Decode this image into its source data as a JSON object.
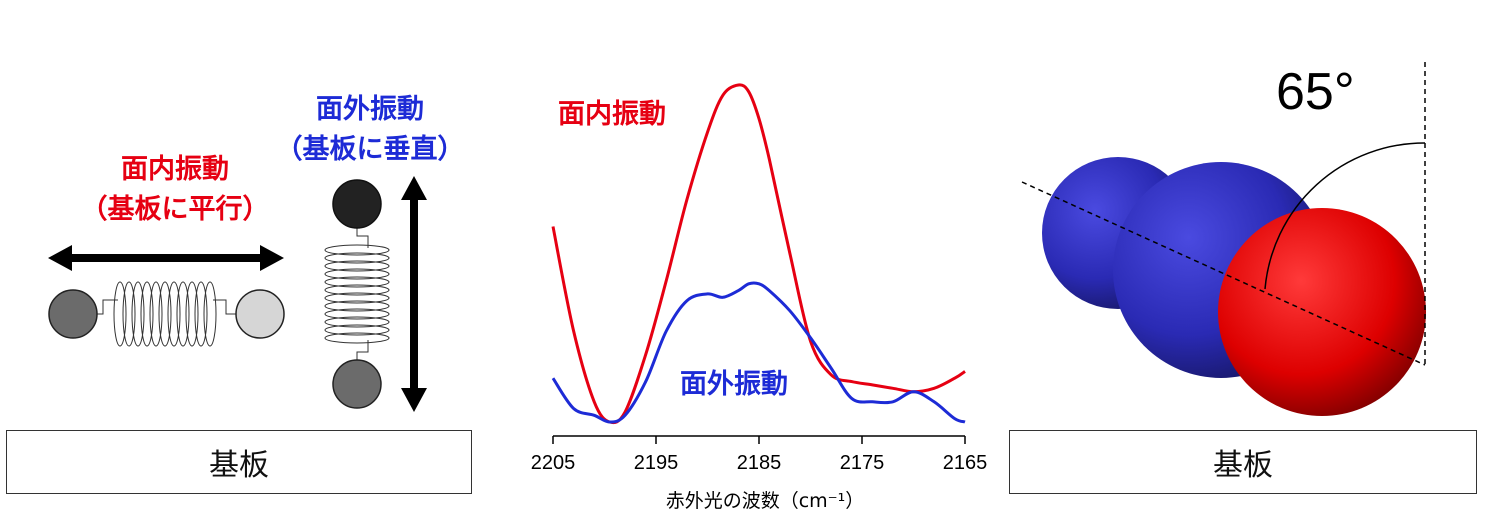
{
  "left_panel": {
    "in_plane_title": "面内振動",
    "in_plane_note": "（基板に平行）",
    "out_plane_title": "面外振動",
    "out_plane_note": "（基板に垂直）",
    "substrate_label": "基板"
  },
  "right_panel": {
    "angle_label": "65°",
    "substrate_label": "基板"
  },
  "colors": {
    "in_plane": "#e60012",
    "out_of_plane": "#1d2bd6",
    "nitrogen": "#2b2bb8",
    "oxygen": "#e00000"
  },
  "chart_data": {
    "type": "line",
    "xlabel": "赤外光の波数（cm⁻¹）",
    "xlim": [
      2205,
      2165
    ],
    "x_ticks": [
      "2205",
      "2195",
      "2185",
      "2175",
      "2165"
    ],
    "series": [
      {
        "name": "面内振動",
        "x": [
          2205,
          2203,
          2201,
          2199.5,
          2198,
          2196,
          2194,
          2192,
          2190,
          2188.5,
          2187,
          2186,
          2185,
          2184,
          2182,
          2180,
          2178,
          2176,
          2174,
          2172,
          2170,
          2168,
          2166,
          2165
        ],
        "y": [
          0.58,
          0.27,
          0.06,
          0.0,
          0.03,
          0.2,
          0.42,
          0.66,
          0.86,
          0.97,
          1.0,
          0.98,
          0.9,
          0.78,
          0.5,
          0.24,
          0.14,
          0.12,
          0.11,
          0.1,
          0.09,
          0.1,
          0.13,
          0.15
        ]
      },
      {
        "name": "面外振動",
        "x": [
          2205,
          2203,
          2201,
          2199.5,
          2198,
          2196,
          2194,
          2192,
          2190,
          2188.5,
          2187,
          2186,
          2185,
          2184,
          2182,
          2180,
          2178,
          2176,
          2174,
          2172,
          2170,
          2168,
          2166,
          2165
        ],
        "y": [
          0.13,
          0.04,
          0.02,
          0.0,
          0.02,
          0.12,
          0.27,
          0.36,
          0.38,
          0.37,
          0.39,
          0.41,
          0.41,
          0.39,
          0.33,
          0.25,
          0.16,
          0.07,
          0.06,
          0.06,
          0.09,
          0.06,
          0.01,
          0.0
        ]
      }
    ]
  }
}
